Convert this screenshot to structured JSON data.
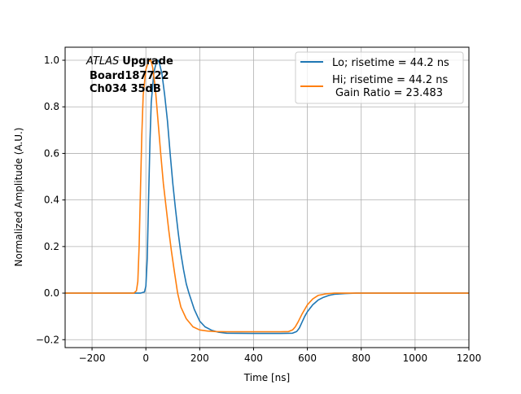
{
  "chart_data": {
    "type": "line",
    "title": "",
    "xlabel": "Time [ns]",
    "ylabel": "Normalized Amplitude (A.U.)",
    "xlim": [
      -300,
      1200
    ],
    "ylim": [
      -0.234,
      1.056
    ],
    "xticks": [
      -200,
      0,
      200,
      400,
      600,
      800,
      1000,
      1200
    ],
    "yticks": [
      -0.2,
      0.0,
      0.2,
      0.4,
      0.6,
      0.8,
      1.0
    ],
    "xtick_labels": [
      "−200",
      "0",
      "200",
      "400",
      "600",
      "800",
      "1000",
      "1200"
    ],
    "ytick_labels": [
      "−0.2",
      "0.0",
      "0.2",
      "0.4",
      "0.6",
      "0.8",
      "1.0"
    ],
    "grid": true,
    "legend_placement": "top-right",
    "annotation": {
      "atlas": "ATLAS",
      "upgrade": "Upgrade",
      "board": "Board187722",
      "channel": "Ch034 35dB"
    },
    "series": [
      {
        "name": "Lo; risetime = 44.2 ns",
        "color": "#1f77b4",
        "x": [
          -300,
          -20,
          -5,
          0,
          5,
          10,
          15,
          20,
          30,
          40,
          45,
          50,
          60,
          70,
          80,
          90,
          100,
          110,
          120,
          130,
          140,
          150,
          160,
          180,
          200,
          220,
          245,
          270,
          300,
          400,
          500,
          545,
          560,
          570,
          580,
          590,
          600,
          620,
          640,
          660,
          680,
          700,
          740,
          780,
          1200
        ],
        "y": [
          0,
          0,
          0.005,
          0.03,
          0.15,
          0.4,
          0.65,
          0.82,
          0.95,
          0.995,
          1.0,
          0.99,
          0.94,
          0.85,
          0.74,
          0.6,
          0.47,
          0.36,
          0.26,
          0.17,
          0.1,
          0.04,
          0.0,
          -0.07,
          -0.12,
          -0.145,
          -0.16,
          -0.168,
          -0.172,
          -0.173,
          -0.173,
          -0.172,
          -0.165,
          -0.15,
          -0.125,
          -0.1,
          -0.08,
          -0.05,
          -0.03,
          -0.018,
          -0.01,
          -0.005,
          -0.002,
          0,
          0
        ]
      },
      {
        "name": "Hi; risetime = 44.2 ns\n Gain Ratio = 23.483",
        "color": "#ff7f0e",
        "x": [
          -300,
          -45,
          -35,
          -30,
          -25,
          -20,
          -15,
          -10,
          0,
          10,
          18,
          25,
          35,
          45,
          55,
          65,
          75,
          85,
          95,
          105,
          118,
          130,
          150,
          175,
          200,
          230,
          260,
          300,
          400,
          500,
          530,
          545,
          555,
          565,
          580,
          600,
          620,
          640,
          670,
          700,
          1200
        ],
        "y": [
          0,
          0,
          0.01,
          0.05,
          0.2,
          0.45,
          0.68,
          0.85,
          0.96,
          0.995,
          1.0,
          0.97,
          0.88,
          0.74,
          0.6,
          0.47,
          0.37,
          0.27,
          0.18,
          0.1,
          0.0,
          -0.06,
          -0.11,
          -0.145,
          -0.158,
          -0.163,
          -0.165,
          -0.166,
          -0.166,
          -0.166,
          -0.165,
          -0.158,
          -0.145,
          -0.125,
          -0.09,
          -0.05,
          -0.025,
          -0.01,
          -0.003,
          0,
          0
        ]
      }
    ]
  }
}
